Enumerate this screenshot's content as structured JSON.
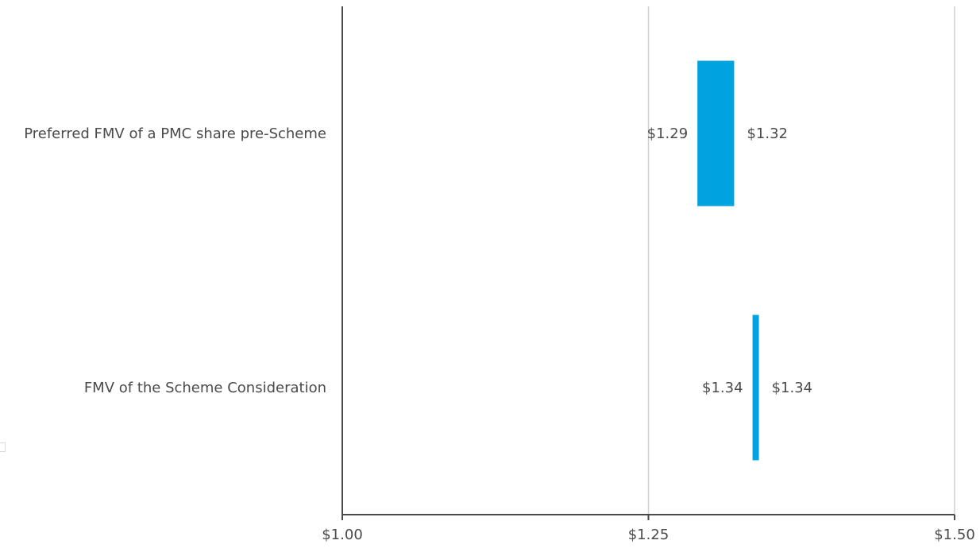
{
  "chart_data": {
    "type": "bar",
    "orientation": "horizontal-range",
    "title": "",
    "xlabel": "",
    "ylabel": "",
    "xlim": [
      1.0,
      1.5
    ],
    "x_ticks": [
      1.0,
      1.25,
      1.5
    ],
    "x_tick_labels": [
      "$1.00",
      "$1.25",
      "$1.50"
    ],
    "grid": true,
    "categories": [
      "Preferred FMV of a PMC share pre-Scheme",
      "FMV of the Scheme Consideration"
    ],
    "series": [
      {
        "ranges": [
          {
            "low": 1.29,
            "high": 1.32,
            "low_label": "$1.29",
            "high_label": "$1.32"
          },
          {
            "low": 1.335,
            "high": 1.34,
            "low_label": "$1.34",
            "high_label": "$1.34"
          }
        ]
      }
    ],
    "colors": {
      "bar": "#00a3e0",
      "axis": "#4a4a4a",
      "grid": "#cfcfcf",
      "text": "#4a4a4a"
    }
  }
}
